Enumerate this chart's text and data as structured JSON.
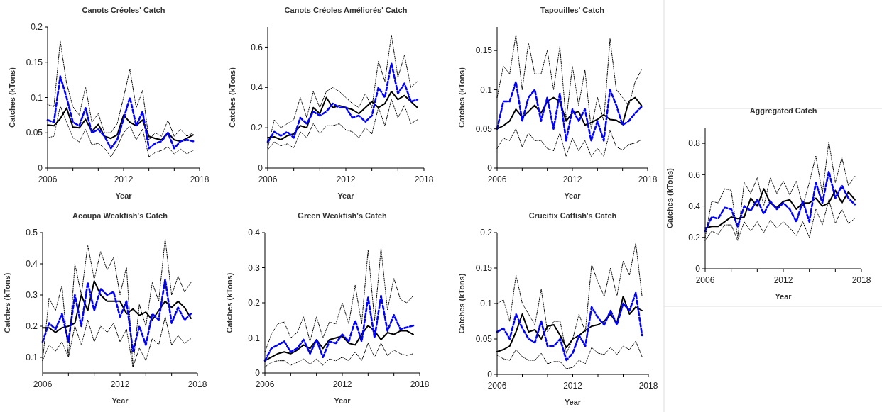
{
  "chart_data": [
    {
      "type": "line",
      "title": "Canots Créoles' Catch",
      "xlabel": "Year",
      "ylabel": "Catches (kTons)",
      "xlim": [
        2006,
        2018
      ],
      "xticks": [
        2006,
        {
          "value": 2008,
          "label": null
        },
        {
          "value": 2010,
          "label": null
        },
        2012,
        {
          "value": 2014,
          "label": null
        },
        {
          "value": 2016,
          "label": null
        },
        2018
      ],
      "ylim": [
        0,
        0.2
      ],
      "yticks": [
        0,
        0.05,
        0.1,
        0.15,
        0.2
      ],
      "x": [
        2006,
        2006.5,
        2007,
        2007.5,
        2008,
        2008.5,
        2009,
        2009.5,
        2010,
        2010.5,
        2011,
        2011.5,
        2012,
        2012.5,
        2013,
        2013.5,
        2014,
        2014.5,
        2015,
        2015.5,
        2016,
        2016.5,
        2017,
        2017.5
      ],
      "series": [
        {
          "color": "#000000",
          "line_style": "solid",
          "values": [
            0.061,
            0.06,
            0.07,
            0.085,
            0.058,
            0.057,
            0.069,
            0.052,
            0.062,
            0.045,
            0.042,
            0.047,
            0.075,
            0.065,
            0.06,
            0.068,
            0.045,
            0.042,
            0.04,
            0.05,
            0.04,
            0.038,
            0.042,
            0.047
          ]
        },
        {
          "color": "#0000ff",
          "line_style": "dashed",
          "values": [
            0.068,
            0.065,
            0.13,
            0.1,
            0.065,
            0.06,
            0.085,
            0.05,
            0.055,
            0.045,
            0.028,
            0.04,
            0.07,
            0.1,
            0.06,
            0.08,
            0.028,
            0.035,
            0.038,
            0.05,
            0.028,
            0.038,
            0.04,
            0.038
          ]
        },
        {
          "color": "#000000",
          "line_style": "dotted",
          "values": [
            0.09,
            0.087,
            0.18,
            0.12,
            0.087,
            0.075,
            0.115,
            0.065,
            0.077,
            0.05,
            0.05,
            0.063,
            0.1,
            0.14,
            0.085,
            0.11,
            0.04,
            0.05,
            0.045,
            0.068,
            0.045,
            0.055,
            0.045,
            0.05
          ]
        },
        {
          "color": "#000000",
          "line_style": "dotted",
          "values": [
            0.043,
            0.045,
            0.088,
            0.065,
            0.043,
            0.037,
            0.055,
            0.033,
            0.035,
            0.028,
            0.016,
            0.03,
            0.05,
            0.06,
            0.04,
            0.055,
            0.016,
            0.022,
            0.025,
            0.03,
            0.02,
            0.027,
            0.02,
            0.025
          ]
        }
      ]
    },
    {
      "type": "line",
      "title": "Canots Créoles Améliorés' Catch",
      "xlabel": "Year",
      "ylabel": "Catches (kTons)",
      "xlim": [
        2006,
        2018
      ],
      "xticks": [
        2006,
        {
          "value": 2008,
          "label": null
        },
        {
          "value": 2010,
          "label": null
        },
        2012,
        {
          "value": 2014,
          "label": null
        },
        {
          "value": 2016,
          "label": null
        },
        2018
      ],
      "ylim": [
        0,
        0.7
      ],
      "yticks": [
        0,
        0.2,
        0.4,
        0.6
      ],
      "x": [
        2006,
        2006.5,
        2007,
        2007.5,
        2008,
        2008.5,
        2009,
        2009.5,
        2010,
        2010.5,
        2011,
        2011.5,
        2012,
        2012.5,
        2013,
        2013.5,
        2014,
        2014.5,
        2015,
        2015.5,
        2016,
        2016.5,
        2017,
        2017.5
      ],
      "series": [
        {
          "color": "#000000",
          "line_style": "solid",
          "values": [
            0.15,
            0.155,
            0.14,
            0.16,
            0.17,
            0.21,
            0.2,
            0.3,
            0.27,
            0.35,
            0.3,
            0.31,
            0.3,
            0.29,
            0.27,
            0.3,
            0.33,
            0.3,
            0.32,
            0.38,
            0.34,
            0.36,
            0.33,
            0.3
          ]
        },
        {
          "color": "#0000ff",
          "line_style": "dashed",
          "values": [
            0.13,
            0.18,
            0.16,
            0.18,
            0.15,
            0.25,
            0.22,
            0.28,
            0.26,
            0.28,
            0.32,
            0.3,
            0.3,
            0.25,
            0.26,
            0.23,
            0.26,
            0.4,
            0.35,
            0.52,
            0.37,
            0.42,
            0.33,
            0.34
          ]
        },
        {
          "color": "#000000",
          "line_style": "dotted",
          "values": [
            0.1,
            0.24,
            0.2,
            0.22,
            0.24,
            0.35,
            0.25,
            0.38,
            0.3,
            0.38,
            0.4,
            0.38,
            0.35,
            0.32,
            0.3,
            0.37,
            0.3,
            0.53,
            0.43,
            0.66,
            0.45,
            0.56,
            0.4,
            0.43
          ]
        },
        {
          "color": "#000000",
          "line_style": "dotted",
          "values": [
            0.09,
            0.13,
            0.11,
            0.12,
            0.1,
            0.18,
            0.15,
            0.22,
            0.17,
            0.21,
            0.21,
            0.22,
            0.19,
            0.18,
            0.15,
            0.2,
            0.17,
            0.3,
            0.21,
            0.34,
            0.25,
            0.31,
            0.22,
            0.24
          ]
        }
      ]
    },
    {
      "type": "line",
      "title": "Tapouilles' Catch",
      "xlabel": "Year",
      "ylabel": "Catches (kTons)",
      "xlim": [
        2006,
        2018
      ],
      "xticks": [
        2006,
        {
          "value": 2008,
          "label": null
        },
        {
          "value": 2010,
          "label": null
        },
        2012,
        {
          "value": 2014,
          "label": null
        },
        {
          "value": 2016,
          "label": null
        },
        2018
      ],
      "ylim": [
        0,
        0.18
      ],
      "yticks": [
        0,
        0.05,
        0.1,
        0.15
      ],
      "x": [
        2006,
        2006.5,
        2007,
        2007.5,
        2008,
        2008.5,
        2009,
        2009.5,
        2010,
        2010.5,
        2011,
        2011.5,
        2012,
        2012.5,
        2013,
        2013.5,
        2014,
        2014.5,
        2015,
        2015.5,
        2016,
        2016.5,
        2017,
        2017.5
      ],
      "series": [
        {
          "color": "#000000",
          "line_style": "solid",
          "values": [
            0.05,
            0.054,
            0.06,
            0.075,
            0.065,
            0.072,
            0.08,
            0.07,
            0.085,
            0.09,
            0.085,
            0.06,
            0.07,
            0.072,
            0.055,
            0.058,
            0.062,
            0.068,
            0.062,
            0.061,
            0.056,
            0.085,
            0.09,
            0.08
          ]
        },
        {
          "color": "#0000ff",
          "line_style": "dashed",
          "values": [
            0.05,
            0.085,
            0.085,
            0.11,
            0.06,
            0.09,
            0.1,
            0.06,
            0.09,
            0.05,
            0.095,
            0.035,
            0.075,
            0.06,
            0.075,
            0.035,
            0.06,
            0.035,
            0.1,
            0.08,
            0.055,
            0.06,
            0.07,
            0.078
          ]
        },
        {
          "color": "#000000",
          "line_style": "dotted",
          "values": [
            0.09,
            0.13,
            0.12,
            0.17,
            0.1,
            0.16,
            0.12,
            0.12,
            0.15,
            0.1,
            0.155,
            0.06,
            0.13,
            0.08,
            0.125,
            0.05,
            0.09,
            0.06,
            0.165,
            0.1,
            0.09,
            0.08,
            0.11,
            0.125
          ]
        },
        {
          "color": "#000000",
          "line_style": "dotted",
          "values": [
            0.025,
            0.038,
            0.035,
            0.05,
            0.027,
            0.045,
            0.035,
            0.035,
            0.025,
            0.022,
            0.045,
            0.015,
            0.038,
            0.022,
            0.035,
            0.015,
            0.025,
            0.015,
            0.048,
            0.027,
            0.023,
            0.03,
            0.032,
            0.036
          ]
        }
      ]
    },
    {
      "type": "line",
      "title": "Aggregated Catch",
      "xlabel": "Year",
      "ylabel": "Catches (kTons)",
      "xlim": [
        2006,
        2018
      ],
      "xticks": [
        2006,
        {
          "value": 2008,
          "label": null
        },
        {
          "value": 2010,
          "label": null
        },
        2012,
        {
          "value": 2014,
          "label": null
        },
        {
          "value": 2016,
          "label": null
        },
        2018
      ],
      "ylim": [
        0,
        0.9
      ],
      "yticks": [
        0,
        0.2,
        0.4,
        0.6,
        0.8
      ],
      "x": [
        2006,
        2006.5,
        2007,
        2007.5,
        2008,
        2008.5,
        2009,
        2009.5,
        2010,
        2010.5,
        2011,
        2011.5,
        2012,
        2012.5,
        2013,
        2013.5,
        2014,
        2014.5,
        2015,
        2015.5,
        2016,
        2016.5,
        2017,
        2017.5
      ],
      "series": [
        {
          "color": "#000000",
          "line_style": "solid",
          "values": [
            0.26,
            0.27,
            0.27,
            0.3,
            0.33,
            0.32,
            0.33,
            0.45,
            0.4,
            0.51,
            0.42,
            0.39,
            0.43,
            0.44,
            0.38,
            0.42,
            0.42,
            0.45,
            0.4,
            0.42,
            0.5,
            0.42,
            0.49,
            0.44
          ]
        },
        {
          "color": "#0000ff",
          "line_style": "dashed",
          "values": [
            0.24,
            0.33,
            0.32,
            0.39,
            0.38,
            0.27,
            0.4,
            0.37,
            0.44,
            0.35,
            0.43,
            0.38,
            0.42,
            0.38,
            0.3,
            0.43,
            0.3,
            0.55,
            0.42,
            0.62,
            0.45,
            0.53,
            0.45,
            0.41
          ]
        },
        {
          "color": "#000000",
          "line_style": "dotted",
          "values": [
            0.2,
            0.43,
            0.42,
            0.51,
            0.5,
            0.2,
            0.55,
            0.48,
            0.58,
            0.4,
            0.58,
            0.48,
            0.56,
            0.47,
            0.56,
            0.4,
            0.55,
            0.72,
            0.48,
            0.81,
            0.55,
            0.71,
            0.53,
            0.59
          ]
        },
        {
          "color": "#000000",
          "line_style": "dotted",
          "values": [
            0.18,
            0.24,
            0.22,
            0.28,
            0.28,
            0.18,
            0.3,
            0.24,
            0.3,
            0.23,
            0.31,
            0.26,
            0.3,
            0.26,
            0.21,
            0.3,
            0.2,
            0.38,
            0.28,
            0.44,
            0.29,
            0.38,
            0.29,
            0.32
          ]
        }
      ]
    },
    {
      "type": "line",
      "title": "Acoupa Weakfish's Catch",
      "xlabel": "Year",
      "ylabel": "Catches (kTons)",
      "xlim": [
        2006,
        2018
      ],
      "xticks": [
        2006,
        {
          "value": 2008,
          "label": null
        },
        {
          "value": 2010,
          "label": null
        },
        2012,
        {
          "value": 2014,
          "label": null
        },
        {
          "value": 2016,
          "label": null
        },
        2018
      ],
      "ylim": [
        0.05,
        0.5
      ],
      "yticks": [
        0.1,
        0.2,
        0.3,
        0.4,
        0.5
      ],
      "x": [
        2006,
        2006.5,
        2007,
        2007.5,
        2008,
        2008.5,
        2009,
        2009.5,
        2010,
        2010.5,
        2011,
        2011.5,
        2012,
        2012.5,
        2013,
        2013.5,
        2014,
        2014.5,
        2015,
        2015.5,
        2016,
        2016.5,
        2017,
        2017.5
      ],
      "series": [
        {
          "color": "#000000",
          "line_style": "solid",
          "values": [
            0.195,
            0.195,
            0.18,
            0.195,
            0.2,
            0.21,
            0.3,
            0.25,
            0.345,
            0.3,
            0.28,
            0.28,
            0.28,
            0.24,
            0.255,
            0.235,
            0.245,
            0.22,
            0.25,
            0.28,
            0.26,
            0.28,
            0.26,
            0.225
          ]
        },
        {
          "color": "#0000ff",
          "line_style": "dashed",
          "values": [
            0.15,
            0.21,
            0.19,
            0.24,
            0.15,
            0.3,
            0.2,
            0.34,
            0.25,
            0.32,
            0.3,
            0.31,
            0.23,
            0.28,
            0.12,
            0.2,
            0.14,
            0.24,
            0.22,
            0.35,
            0.21,
            0.26,
            0.22,
            0.24
          ]
        },
        {
          "color": "#000000",
          "line_style": "dotted",
          "values": [
            0.09,
            0.29,
            0.25,
            0.33,
            0.1,
            0.4,
            0.3,
            0.46,
            0.35,
            0.44,
            0.38,
            0.42,
            0.3,
            0.39,
            0.07,
            0.27,
            0.2,
            0.34,
            0.28,
            0.48,
            0.3,
            0.36,
            0.31,
            0.34
          ]
        },
        {
          "color": "#000000",
          "line_style": "dotted",
          "values": [
            0.09,
            0.14,
            0.12,
            0.15,
            0.1,
            0.2,
            0.14,
            0.22,
            0.15,
            0.2,
            0.18,
            0.21,
            0.15,
            0.19,
            0.07,
            0.13,
            0.09,
            0.16,
            0.14,
            0.23,
            0.14,
            0.17,
            0.145,
            0.16
          ]
        }
      ]
    },
    {
      "type": "line",
      "title": "Green Weakfish's Catch",
      "xlabel": "Year",
      "ylabel": "Catches (kTons)",
      "xlim": [
        2006,
        2018
      ],
      "xticks": [
        2006,
        {
          "value": 2008,
          "label": null
        },
        {
          "value": 2010,
          "label": null
        },
        2012,
        {
          "value": 2014,
          "label": null
        },
        {
          "value": 2016,
          "label": null
        },
        2018
      ],
      "ylim": [
        0,
        0.4
      ],
      "yticks": [
        0,
        0.1,
        0.2,
        0.3,
        0.4
      ],
      "x": [
        2006,
        2006.5,
        2007,
        2007.5,
        2008,
        2008.5,
        2009,
        2009.5,
        2010,
        2010.5,
        2011,
        2011.5,
        2012,
        2012.5,
        2013,
        2013.5,
        2014,
        2014.5,
        2015,
        2015.5,
        2016,
        2016.5,
        2017,
        2017.5
      ],
      "series": [
        {
          "color": "#000000",
          "line_style": "solid",
          "values": [
            0.035,
            0.045,
            0.055,
            0.06,
            0.055,
            0.065,
            0.08,
            0.07,
            0.095,
            0.07,
            0.095,
            0.1,
            0.105,
            0.085,
            0.08,
            0.11,
            0.135,
            0.12,
            0.095,
            0.115,
            0.11,
            0.12,
            0.12,
            0.11
          ]
        },
        {
          "color": "#0000ff",
          "line_style": "dashed",
          "values": [
            0.035,
            0.07,
            0.08,
            0.09,
            0.06,
            0.07,
            0.095,
            0.055,
            0.095,
            0.045,
            0.09,
            0.085,
            0.11,
            0.09,
            0.15,
            0.09,
            0.215,
            0.1,
            0.22,
            0.12,
            0.165,
            0.125,
            0.13,
            0.135
          ]
        },
        {
          "color": "#000000",
          "line_style": "dotted",
          "values": [
            0.06,
            0.11,
            0.14,
            0.145,
            0.1,
            0.115,
            0.16,
            0.09,
            0.16,
            0.1,
            0.145,
            0.14,
            0.2,
            0.14,
            0.25,
            0.14,
            0.35,
            0.15,
            0.355,
            0.18,
            0.27,
            0.21,
            0.2,
            0.22
          ]
        },
        {
          "color": "#000000",
          "line_style": "dotted",
          "values": [
            0.017,
            0.03,
            0.035,
            0.035,
            0.022,
            0.03,
            0.04,
            0.025,
            0.04,
            0.022,
            0.04,
            0.035,
            0.045,
            0.035,
            0.06,
            0.035,
            0.085,
            0.045,
            0.085,
            0.05,
            0.065,
            0.055,
            0.05,
            0.055
          ]
        }
      ]
    },
    {
      "type": "line",
      "title": "Crucifix Catfish's Catch",
      "xlabel": "Year",
      "ylabel": "Catches (kTons)",
      "xlim": [
        2006,
        2018
      ],
      "xticks": [
        2006,
        {
          "value": 2008,
          "label": null
        },
        {
          "value": 2010,
          "label": null
        },
        2012,
        {
          "value": 2014,
          "label": null
        },
        {
          "value": 2016,
          "label": null
        },
        2018
      ],
      "ylim": [
        0,
        0.2
      ],
      "yticks": [
        0,
        0.05,
        0.1,
        0.15,
        0.2
      ],
      "x": [
        2006,
        2006.5,
        2007,
        2007.5,
        2008,
        2008.5,
        2009,
        2009.5,
        2010,
        2010.5,
        2011,
        2011.5,
        2012,
        2012.5,
        2013,
        2013.5,
        2014,
        2014.5,
        2015,
        2015.5,
        2016,
        2016.5,
        2017,
        2017.5
      ],
      "series": [
        {
          "color": "#000000",
          "line_style": "solid",
          "values": [
            0.032,
            0.035,
            0.04,
            0.06,
            0.085,
            0.06,
            0.063,
            0.05,
            0.068,
            0.07,
            0.055,
            0.038,
            0.05,
            0.055,
            0.062,
            0.068,
            0.07,
            0.075,
            0.085,
            0.072,
            0.11,
            0.085,
            0.095,
            0.09
          ]
        },
        {
          "color": "#0000ff",
          "line_style": "dashed",
          "values": [
            0.06,
            0.065,
            0.05,
            0.085,
            0.065,
            0.05,
            0.045,
            0.075,
            0.04,
            0.04,
            0.05,
            0.02,
            0.03,
            0.055,
            0.04,
            0.095,
            0.08,
            0.07,
            0.09,
            0.07,
            0.1,
            0.09,
            0.115,
            0.055
          ]
        },
        {
          "color": "#000000",
          "line_style": "dotted",
          "values": [
            0.1,
            0.105,
            0.075,
            0.14,
            0.1,
            0.085,
            0.07,
            0.12,
            0.06,
            0.075,
            0.075,
            0.03,
            0.05,
            0.085,
            0.06,
            0.155,
            0.13,
            0.11,
            0.15,
            0.11,
            0.16,
            0.14,
            0.185,
            0.11
          ]
        },
        {
          "color": "#000000",
          "line_style": "dotted",
          "values": [
            0.027,
            0.022,
            0.02,
            0.035,
            0.025,
            0.02,
            0.02,
            0.03,
            0.015,
            0.018,
            0.018,
            0.008,
            0.01,
            0.02,
            0.015,
            0.038,
            0.03,
            0.028,
            0.038,
            0.028,
            0.04,
            0.035,
            0.047,
            0.025
          ]
        }
      ]
    }
  ]
}
